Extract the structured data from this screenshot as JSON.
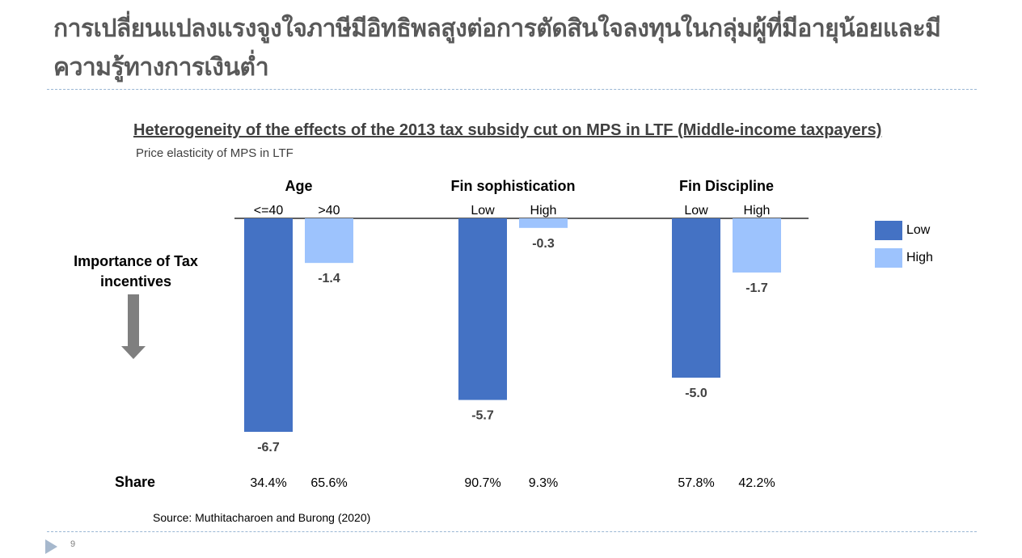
{
  "slide": {
    "title": "การเปลี่ยนแปลงแรงจูงใจภาษีมีอิทธิพลสูงต่อการตัดสินใจลงทุนในกลุ่มผู้ที่มีอายุน้อยและมีความรู้ทางการเงินต่ำ",
    "page_number": "9",
    "source": "Source: Muthitacharoen and Burong (2020)",
    "side_label": "Importance of Tax incentives",
    "share_label": "Share"
  },
  "colors": {
    "low": "#4472c4",
    "high": "#9dc3fd"
  },
  "chart_data": {
    "type": "bar",
    "title": "Heterogeneity of the effects of the 2013 tax subsidy cut on MPS in LTF (Middle-income taxpayers)",
    "ylabel": "Price elasticity of MPS in LTF",
    "ylim": [
      -7,
      0
    ],
    "legend": {
      "position": "right",
      "entries": [
        "Low",
        "High"
      ]
    },
    "groups": [
      {
        "name": "Age",
        "bars": [
          {
            "category": "<=40",
            "series": "Low",
            "value": -6.7,
            "label": "-6.7",
            "share": "34.4%"
          },
          {
            "category": ">40",
            "series": "High",
            "value": -1.4,
            "label": "-1.4",
            "share": "65.6%"
          }
        ]
      },
      {
        "name": "Fin sophistication",
        "bars": [
          {
            "category": "Low",
            "series": "Low",
            "value": -5.7,
            "label": "-5.7",
            "share": "90.7%"
          },
          {
            "category": "High",
            "series": "High",
            "value": -0.3,
            "label": "-0.3",
            "share": "9.3%"
          }
        ]
      },
      {
        "name": "Fin Discipline",
        "bars": [
          {
            "category": "Low",
            "series": "Low",
            "value": -5.0,
            "label": "-5.0",
            "share": "57.8%"
          },
          {
            "category": "High",
            "series": "High",
            "value": -1.7,
            "label": "-1.7",
            "share": "42.2%"
          }
        ]
      }
    ]
  }
}
